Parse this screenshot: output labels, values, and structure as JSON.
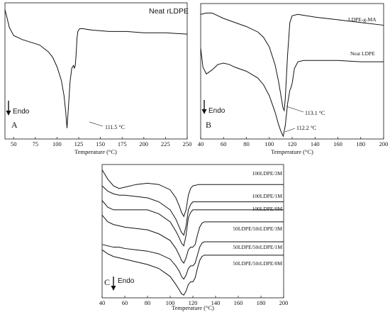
{
  "chart_data": [
    {
      "panel": "A",
      "type": "line",
      "title": "",
      "xlabel": "Temperature (°C)",
      "ylabel": "",
      "xlim": [
        40,
        250
      ],
      "ylim": [
        0,
        1
      ],
      "xticks": [
        50,
        75,
        100,
        125,
        150,
        175,
        200,
        225,
        250
      ],
      "endo_label": "Endo",
      "series": [
        {
          "name": "Neat rLDPE",
          "x": [
            40,
            42,
            45,
            50,
            60,
            70,
            80,
            90,
            95,
            100,
            105,
            108,
            110,
            111.5,
            113,
            115,
            117,
            119,
            120,
            121,
            122,
            123,
            124,
            126,
            130,
            140,
            160,
            180,
            200,
            225,
            250
          ],
          "y": [
            0.95,
            0.9,
            0.82,
            0.76,
            0.73,
            0.71,
            0.69,
            0.64,
            0.6,
            0.53,
            0.43,
            0.32,
            0.2,
            0.08,
            0.22,
            0.42,
            0.52,
            0.54,
            0.52,
            0.54,
            0.62,
            0.74,
            0.79,
            0.81,
            0.81,
            0.8,
            0.79,
            0.79,
            0.78,
            0.78,
            0.77
          ]
        }
      ],
      "annotations": [
        {
          "text": "Neat rLDPE",
          "kind": "curve-label"
        },
        {
          "text": "111.5 °C",
          "kind": "peak",
          "x": 111.5
        }
      ],
      "panel_label": "A"
    },
    {
      "panel": "B",
      "type": "line",
      "title": "",
      "xlabel": "Temperature (°C)",
      "ylabel": "",
      "xlim": [
        40,
        200
      ],
      "ylim": [
        0,
        1
      ],
      "xticks": [
        40,
        60,
        80,
        100,
        120,
        140,
        160,
        180,
        200
      ],
      "endo_label": "Endo",
      "series": [
        {
          "name": "LDPE-g-MA",
          "x": [
            40,
            45,
            50,
            55,
            60,
            70,
            80,
            90,
            95,
            100,
            105,
            108,
            110,
            112,
            113.1,
            114,
            116,
            118,
            120,
            125,
            140,
            160,
            180,
            200
          ],
          "y": [
            0.92,
            0.93,
            0.93,
            0.91,
            0.89,
            0.86,
            0.83,
            0.79,
            0.75,
            0.68,
            0.55,
            0.43,
            0.33,
            0.23,
            0.21,
            0.3,
            0.62,
            0.86,
            0.91,
            0.92,
            0.9,
            0.88,
            0.86,
            0.84
          ]
        },
        {
          "name": "Neat LDPE",
          "x": [
            40,
            42,
            45,
            50,
            55,
            60,
            65,
            70,
            80,
            90,
            95,
            100,
            105,
            108,
            110,
            112.2,
            114,
            116,
            118,
            119,
            120,
            122,
            125,
            130,
            140,
            160,
            180,
            200
          ],
          "y": [
            0.67,
            0.53,
            0.48,
            0.51,
            0.55,
            0.56,
            0.55,
            0.53,
            0.5,
            0.45,
            0.4,
            0.32,
            0.2,
            0.11,
            0.06,
            0.02,
            0.1,
            0.26,
            0.36,
            0.38,
            0.41,
            0.52,
            0.57,
            0.58,
            0.58,
            0.58,
            0.57,
            0.57
          ]
        }
      ],
      "annotations": [
        {
          "text": "LDPE-g-MA",
          "kind": "curve-label"
        },
        {
          "text": "Neat LDPE",
          "kind": "curve-label"
        },
        {
          "text": "113.1 °C",
          "kind": "peak",
          "x": 113.1
        },
        {
          "text": "112.2 °C",
          "kind": "peak",
          "x": 112.2
        }
      ],
      "panel_label": "B"
    },
    {
      "panel": "C",
      "type": "line",
      "title": "",
      "xlabel": "Temperature (°C)",
      "ylabel": "",
      "xlim": [
        40,
        200
      ],
      "ylim": [
        0,
        1
      ],
      "xticks": [
        40,
        60,
        80,
        100,
        120,
        140,
        160,
        180,
        200
      ],
      "endo_label": "Endo",
      "series": [
        {
          "name": "100LDPE/3M",
          "x": [
            40,
            45,
            50,
            55,
            60,
            70,
            80,
            90,
            100,
            105,
            108,
            110,
            112,
            114,
            116,
            118,
            120,
            125,
            140,
            160,
            180,
            200
          ],
          "y": [
            0.96,
            0.89,
            0.84,
            0.82,
            0.83,
            0.85,
            0.86,
            0.85,
            0.81,
            0.75,
            0.69,
            0.64,
            0.61,
            0.66,
            0.77,
            0.82,
            0.84,
            0.85,
            0.85,
            0.85,
            0.85,
            0.85
          ]
        },
        {
          "name": "100LDPE/1M",
          "x": [
            40,
            45,
            50,
            55,
            60,
            70,
            80,
            90,
            100,
            105,
            108,
            110,
            112,
            114,
            116,
            118,
            120,
            125,
            140,
            160,
            180,
            200
          ],
          "y": [
            0.84,
            0.8,
            0.78,
            0.77,
            0.77,
            0.76,
            0.75,
            0.72,
            0.66,
            0.59,
            0.53,
            0.49,
            0.47,
            0.54,
            0.66,
            0.7,
            0.72,
            0.72,
            0.72,
            0.72,
            0.72,
            0.72
          ]
        },
        {
          "name": "100LDPE/0M",
          "x": [
            40,
            45,
            50,
            55,
            60,
            70,
            80,
            90,
            100,
            105,
            108,
            110,
            112,
            114,
            116,
            118,
            120,
            125,
            140,
            160,
            180,
            200
          ],
          "y": [
            0.73,
            0.68,
            0.66,
            0.66,
            0.66,
            0.66,
            0.66,
            0.63,
            0.57,
            0.5,
            0.45,
            0.41,
            0.39,
            0.47,
            0.6,
            0.64,
            0.66,
            0.66,
            0.66,
            0.66,
            0.66,
            0.66
          ]
        },
        {
          "name": "50LDPE/50rLDPE/3M",
          "x": [
            40,
            45,
            50,
            55,
            60,
            70,
            80,
            90,
            100,
            105,
            108,
            110,
            112,
            114,
            116,
            118,
            120,
            122,
            124,
            126,
            128,
            130,
            135,
            140,
            160,
            180,
            200
          ],
          "y": [
            0.62,
            0.57,
            0.55,
            0.54,
            0.53,
            0.52,
            0.51,
            0.48,
            0.43,
            0.37,
            0.32,
            0.28,
            0.26,
            0.3,
            0.36,
            0.38,
            0.38,
            0.4,
            0.47,
            0.53,
            0.56,
            0.57,
            0.57,
            0.57,
            0.57,
            0.57,
            0.57
          ]
        },
        {
          "name": "50LDPE/50rLDPE/1M",
          "x": [
            40,
            45,
            50,
            55,
            60,
            70,
            80,
            90,
            100,
            105,
            108,
            110,
            112,
            114,
            116,
            118,
            120,
            122,
            124,
            126,
            128,
            130,
            135,
            140,
            160,
            180,
            200
          ],
          "y": [
            0.4,
            0.39,
            0.38,
            0.38,
            0.37,
            0.36,
            0.35,
            0.33,
            0.29,
            0.24,
            0.2,
            0.16,
            0.14,
            0.17,
            0.22,
            0.24,
            0.24,
            0.26,
            0.32,
            0.38,
            0.41,
            0.42,
            0.42,
            0.42,
            0.42,
            0.42,
            0.42
          ]
        },
        {
          "name": "50LDPE/50rLDPE/0M",
          "x": [
            40,
            45,
            50,
            55,
            60,
            70,
            80,
            90,
            100,
            105,
            108,
            110,
            112,
            114,
            116,
            118,
            120,
            122,
            124,
            126,
            128,
            130,
            135,
            140,
            160,
            180,
            200
          ],
          "y": [
            0.36,
            0.33,
            0.31,
            0.3,
            0.29,
            0.27,
            0.25,
            0.22,
            0.16,
            0.1,
            0.06,
            0.03,
            0.02,
            0.05,
            0.1,
            0.12,
            0.12,
            0.15,
            0.22,
            0.28,
            0.31,
            0.32,
            0.32,
            0.32,
            0.32,
            0.32,
            0.32
          ]
        }
      ],
      "annotations": [
        {
          "text": "100LDPE/3M",
          "kind": "curve-label"
        },
        {
          "text": "100LDPE/1M",
          "kind": "curve-label"
        },
        {
          "text": "100LDPE/0M",
          "kind": "curve-label"
        },
        {
          "text": "50LDPE/50rLDPE/3M",
          "kind": "curve-label"
        },
        {
          "text": "50LDPE/50rLDPE/1M",
          "kind": "curve-label"
        },
        {
          "text": "50LDPE/50rLDPE/0M",
          "kind": "curve-label"
        }
      ],
      "panel_label": "C"
    }
  ]
}
